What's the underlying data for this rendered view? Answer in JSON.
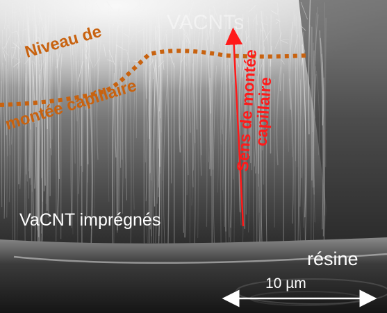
{
  "image": {
    "background_color": "#000000",
    "sem_tone_light": "#e6e6e6",
    "sem_tone_dark": "#1a1a1a"
  },
  "labels": {
    "top_faded": "VACNTs",
    "capillary_level_line1": "Niveau de",
    "capillary_level_line2": "montée capillaire",
    "rise_direction_line1": "Sens de montée",
    "rise_direction_line2": "capillaire",
    "impregnated": "VaCNT imprégnés",
    "resin": "résine",
    "scale_bar": "10 µm"
  },
  "colors": {
    "orange": "#c8620f",
    "red": "#ff1a1a",
    "white": "#ffffff"
  }
}
